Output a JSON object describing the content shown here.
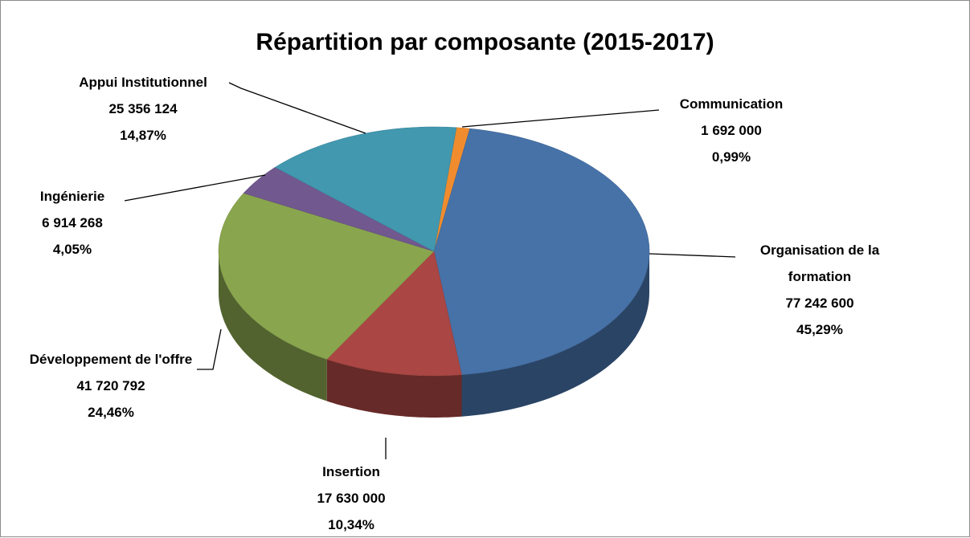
{
  "chart_data": {
    "type": "pie3d",
    "title": "Répartition par composante (2015-2017)",
    "categories": [
      "Communication",
      "Organisation de la formation",
      "Insertion",
      "Développement de l'offre",
      "Ingénierie",
      "Appui Institutionnel"
    ],
    "values": [
      1692000,
      77242600,
      17630000,
      41720792,
      6914268,
      25356124
    ],
    "value_labels": [
      "1 692 000",
      "77 242 600",
      "17 630 000",
      "41 720 792",
      "6 914 268",
      "25 356 124"
    ],
    "percentages": [
      0.99,
      45.29,
      10.34,
      24.46,
      4.05,
      14.87
    ],
    "percentage_labels": [
      "0,99%",
      "45,29%",
      "10,34%",
      "24,46%",
      "4,05%",
      "14,87%"
    ],
    "colors": [
      "#f08c2e",
      "#4672a8",
      "#aa4643",
      "#89a54e",
      "#71588f",
      "#4198af"
    ]
  }
}
